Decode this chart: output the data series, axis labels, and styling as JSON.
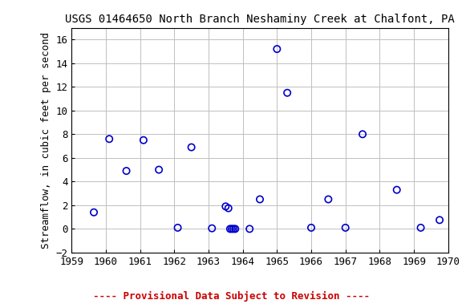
{
  "title": "USGS 01464650 North Branch Neshaminy Creek at Chalfont, PA",
  "ylabel": "Streamflow, in cubic feet per second",
  "subtitle": "---- Provisional Data Subject to Revision ----",
  "subtitle_color": "#cc0000",
  "xlim": [
    1959,
    1970
  ],
  "ylim": [
    -2,
    17
  ],
  "yticks": [
    -2,
    0,
    2,
    4,
    6,
    8,
    10,
    12,
    14,
    16
  ],
  "xticks": [
    1959,
    1960,
    1961,
    1962,
    1963,
    1964,
    1965,
    1966,
    1967,
    1968,
    1969,
    1970
  ],
  "marker_color": "#0000cc",
  "marker_facecolor": "none",
  "marker_size": 6,
  "marker_linewidth": 1.2,
  "background_color": "#ffffff",
  "grid_color": "#c0c0c0",
  "data_x": [
    1959.65,
    1960.1,
    1960.6,
    1961.1,
    1961.55,
    1962.1,
    1962.5,
    1963.1,
    1963.5,
    1963.58,
    1963.63,
    1963.68,
    1963.73,
    1963.78,
    1964.2,
    1964.5,
    1965.0,
    1965.3,
    1966.0,
    1966.5,
    1967.0,
    1967.5,
    1968.5,
    1969.2,
    1969.75
  ],
  "data_y": [
    1.4,
    7.6,
    4.9,
    7.5,
    5.0,
    0.1,
    6.9,
    0.05,
    1.9,
    1.75,
    0.0,
    0.0,
    0.0,
    0.0,
    0.0,
    2.5,
    15.2,
    11.5,
    0.1,
    2.5,
    0.1,
    8.0,
    3.3,
    0.1,
    0.75
  ],
  "title_fontsize": 10,
  "axis_fontsize": 9,
  "tick_fontsize": 9,
  "subtitle_fontsize": 9
}
